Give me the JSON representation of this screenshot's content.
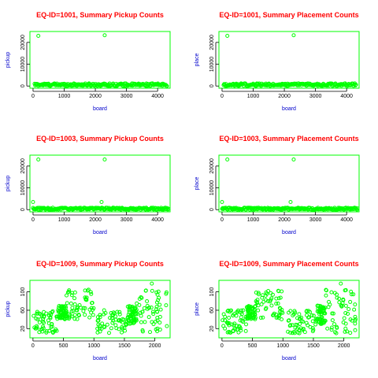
{
  "colors": {
    "frame": "#00ff00",
    "points": "#00ff00",
    "title": "#ff0000",
    "axis_label": "#0000cc",
    "ticks": "#000000"
  },
  "chart_data": [
    {
      "type": "scatter",
      "title": "EQ-ID=1001, Summary Pickup Counts",
      "xlabel": "board",
      "ylabel": "pickup",
      "xlim": [
        -100,
        4400
      ],
      "ylim": [
        -1000,
        25000
      ],
      "xticks": [
        0,
        1000,
        2000,
        3000,
        4000
      ],
      "yticks": [
        0,
        10000,
        20000
      ],
      "points": [
        [
          170,
          23000
        ],
        [
          2300,
          23300
        ]
      ],
      "baseline": {
        "x": [
          50,
          4300
        ],
        "y_range": [
          0,
          1200
        ]
      }
    },
    {
      "type": "scatter",
      "title": "EQ-ID=1001, Summary Placement Counts",
      "xlabel": "board",
      "ylabel": "place",
      "xlim": [
        -100,
        4400
      ],
      "ylim": [
        -1000,
        25000
      ],
      "xticks": [
        0,
        1000,
        2000,
        3000,
        4000
      ],
      "yticks": [
        0,
        10000,
        20000
      ],
      "points": [
        [
          170,
          23000
        ],
        [
          2300,
          23300
        ]
      ],
      "baseline": {
        "x": [
          50,
          4300
        ],
        "y_range": [
          0,
          1200
        ]
      }
    },
    {
      "type": "scatter",
      "title": "EQ-ID=1003, Summary Pickup Counts",
      "xlabel": "board",
      "ylabel": "pickup",
      "xlim": [
        -100,
        4400
      ],
      "ylim": [
        -1000,
        25000
      ],
      "xticks": [
        0,
        1000,
        2000,
        3000,
        4000
      ],
      "yticks": [
        0,
        10000,
        20000
      ],
      "points": [
        [
          0,
          3500
        ],
        [
          170,
          23000
        ],
        [
          2200,
          3500
        ],
        [
          2300,
          23000
        ]
      ],
      "baseline": {
        "x": [
          0,
          4350
        ],
        "y_range": [
          0,
          900
        ]
      }
    },
    {
      "type": "scatter",
      "title": "EQ-ID=1003, Summary Placement Counts",
      "xlabel": "board",
      "ylabel": "place",
      "xlim": [
        -100,
        4400
      ],
      "ylim": [
        -1000,
        25000
      ],
      "xticks": [
        0,
        1000,
        2000,
        3000,
        4000
      ],
      "yticks": [
        0,
        10000,
        20000
      ],
      "points": [
        [
          0,
          3500
        ],
        [
          170,
          23000
        ],
        [
          2200,
          3500
        ],
        [
          2300,
          23000
        ]
      ],
      "baseline": {
        "x": [
          0,
          4350
        ],
        "y_range": [
          0,
          900
        ]
      }
    },
    {
      "type": "scatter",
      "title": "EQ-ID=1009, Summary Pickup Counts",
      "xlabel": "board",
      "ylabel": "pickup",
      "xlim": [
        -50,
        2250
      ],
      "ylim": [
        0,
        125
      ],
      "xticks": [
        0,
        500,
        1000,
        1500,
        2000
      ],
      "yticks": [
        20,
        60,
        100
      ],
      "points": [
        [
          1950,
          118
        ]
      ],
      "segments": [
        {
          "x": [
            0,
            400
          ],
          "y": [
            10,
            60
          ]
        },
        {
          "x": [
            400,
            550
          ],
          "y": [
            40,
            70
          ]
        },
        {
          "x": [
            550,
            1000
          ],
          "y": [
            40,
            105
          ]
        },
        {
          "x": [
            1050,
            1550
          ],
          "y": [
            10,
            60
          ]
        },
        {
          "x": [
            1550,
            1700
          ],
          "y": [
            30,
            70
          ]
        },
        {
          "x": [
            1700,
            2200
          ],
          "y": [
            10,
            105
          ]
        }
      ]
    },
    {
      "type": "scatter",
      "title": "EQ-ID=1009, Summary Placement Counts",
      "xlabel": "board",
      "ylabel": "place",
      "xlim": [
        -50,
        2250
      ],
      "ylim": [
        0,
        125
      ],
      "xticks": [
        0,
        500,
        1000,
        1500,
        2000
      ],
      "yticks": [
        20,
        60,
        100
      ],
      "points": [
        [
          1950,
          118
        ]
      ],
      "segments": [
        {
          "x": [
            0,
            400
          ],
          "y": [
            10,
            60
          ]
        },
        {
          "x": [
            400,
            550
          ],
          "y": [
            40,
            70
          ]
        },
        {
          "x": [
            550,
            1000
          ],
          "y": [
            40,
            105
          ]
        },
        {
          "x": [
            1050,
            1550
          ],
          "y": [
            10,
            60
          ]
        },
        {
          "x": [
            1550,
            1700
          ],
          "y": [
            30,
            70
          ]
        },
        {
          "x": [
            1700,
            2200
          ],
          "y": [
            10,
            105
          ]
        }
      ]
    }
  ]
}
